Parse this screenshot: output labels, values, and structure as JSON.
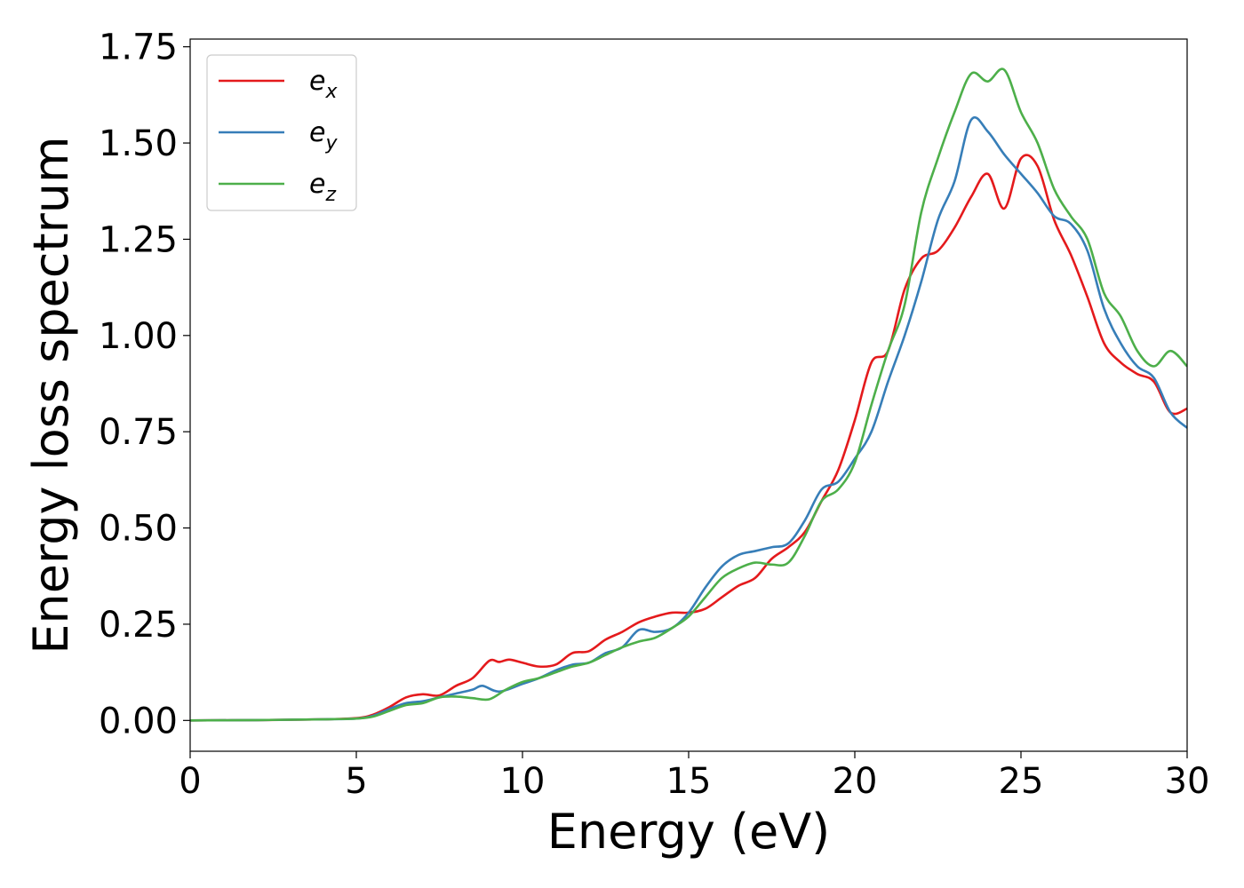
{
  "chart_data": {
    "type": "line",
    "xlabel": "Energy (eV)",
    "ylabel": "Energy loss spectrum",
    "xlim": [
      0,
      30
    ],
    "ylim": [
      -0.08,
      1.77
    ],
    "xticks": [
      0,
      5,
      10,
      15,
      20,
      25,
      30
    ],
    "xtick_labels": [
      "0",
      "5",
      "10",
      "15",
      "20",
      "25",
      "30"
    ],
    "yticks": [
      0.0,
      0.25,
      0.5,
      0.75,
      1.0,
      1.25,
      1.5,
      1.75
    ],
    "ytick_labels": [
      "0.00",
      "0.25",
      "0.50",
      "0.75",
      "1.00",
      "1.25",
      "1.50",
      "1.75"
    ],
    "grid": false,
    "legend": "top-left",
    "series": [
      {
        "name": "e_x",
        "legend_base": "e",
        "legend_sub": "x",
        "color": "#e41a1c",
        "x": [
          0,
          2,
          4,
          5,
          5.5,
          6,
          6.5,
          7,
          7.5,
          8,
          8.5,
          9,
          9.3,
          9.6,
          10,
          10.5,
          11,
          11.5,
          12,
          12.5,
          13,
          13.5,
          14,
          14.5,
          15,
          15.5,
          16,
          16.5,
          17,
          17.5,
          18,
          18.5,
          19,
          19.5,
          20,
          20.5,
          21,
          21.5,
          22,
          22.5,
          23,
          23.5,
          24,
          24.5,
          25,
          25.5,
          26,
          26.5,
          27,
          27.5,
          28,
          28.5,
          29,
          29.5,
          30
        ],
        "y": [
          0,
          0.001,
          0.003,
          0.006,
          0.015,
          0.035,
          0.06,
          0.068,
          0.065,
          0.09,
          0.11,
          0.155,
          0.152,
          0.158,
          0.15,
          0.14,
          0.145,
          0.175,
          0.18,
          0.21,
          0.23,
          0.255,
          0.27,
          0.28,
          0.28,
          0.29,
          0.32,
          0.35,
          0.37,
          0.42,
          0.45,
          0.49,
          0.57,
          0.65,
          0.78,
          0.93,
          0.96,
          1.12,
          1.2,
          1.22,
          1.28,
          1.36,
          1.42,
          1.33,
          1.46,
          1.44,
          1.3,
          1.21,
          1.1,
          0.98,
          0.93,
          0.9,
          0.88,
          0.8,
          0.81
        ]
      },
      {
        "name": "e_y",
        "legend_base": "e",
        "legend_sub": "y",
        "color": "#377eb8",
        "x": [
          0,
          2,
          4,
          5,
          5.5,
          6,
          6.5,
          7,
          7.5,
          8,
          8.5,
          8.8,
          9.3,
          10,
          10.5,
          11,
          11.5,
          12,
          12.5,
          13,
          13.5,
          14,
          14.5,
          15,
          15.5,
          16,
          16.5,
          17,
          17.5,
          18,
          18.5,
          19,
          19.5,
          20,
          20.5,
          21,
          21.5,
          22,
          22.5,
          23,
          23.5,
          24,
          24.5,
          25,
          25.5,
          26,
          26.5,
          27,
          27.5,
          28,
          28.5,
          29,
          29.5,
          30
        ],
        "y": [
          0,
          0.001,
          0.003,
          0.005,
          0.012,
          0.03,
          0.045,
          0.05,
          0.06,
          0.07,
          0.08,
          0.09,
          0.075,
          0.095,
          0.11,
          0.13,
          0.145,
          0.15,
          0.175,
          0.19,
          0.235,
          0.23,
          0.24,
          0.28,
          0.345,
          0.4,
          0.43,
          0.44,
          0.45,
          0.46,
          0.52,
          0.6,
          0.62,
          0.68,
          0.75,
          0.88,
          1.0,
          1.14,
          1.3,
          1.4,
          1.56,
          1.53,
          1.47,
          1.42,
          1.37,
          1.31,
          1.29,
          1.22,
          1.07,
          0.98,
          0.92,
          0.89,
          0.8,
          0.76
        ]
      },
      {
        "name": "e_z",
        "legend_base": "e",
        "legend_sub": "z",
        "color": "#4daf4a",
        "x": [
          0,
          2,
          4,
          5,
          5.5,
          6,
          6.5,
          7,
          7.5,
          8,
          8.5,
          9,
          9.5,
          10,
          10.5,
          11,
          11.5,
          12,
          12.5,
          13,
          13.5,
          14,
          14.5,
          15,
          15.5,
          16,
          16.5,
          17,
          17.5,
          18,
          18.5,
          19,
          19.5,
          20,
          20.5,
          21,
          21.5,
          22,
          22.5,
          23,
          23.5,
          24,
          24.5,
          25,
          25.5,
          26,
          26.5,
          27,
          27.5,
          28,
          28.5,
          29,
          29.5,
          30
        ],
        "y": [
          0,
          0.001,
          0.003,
          0.005,
          0.01,
          0.025,
          0.04,
          0.045,
          0.06,
          0.062,
          0.058,
          0.055,
          0.08,
          0.1,
          0.11,
          0.125,
          0.14,
          0.15,
          0.17,
          0.19,
          0.205,
          0.215,
          0.24,
          0.27,
          0.32,
          0.37,
          0.395,
          0.41,
          0.405,
          0.41,
          0.48,
          0.57,
          0.6,
          0.67,
          0.82,
          0.96,
          1.08,
          1.32,
          1.46,
          1.58,
          1.68,
          1.66,
          1.69,
          1.58,
          1.5,
          1.38,
          1.31,
          1.25,
          1.11,
          1.05,
          0.96,
          0.92,
          0.96,
          0.92
        ]
      }
    ]
  }
}
